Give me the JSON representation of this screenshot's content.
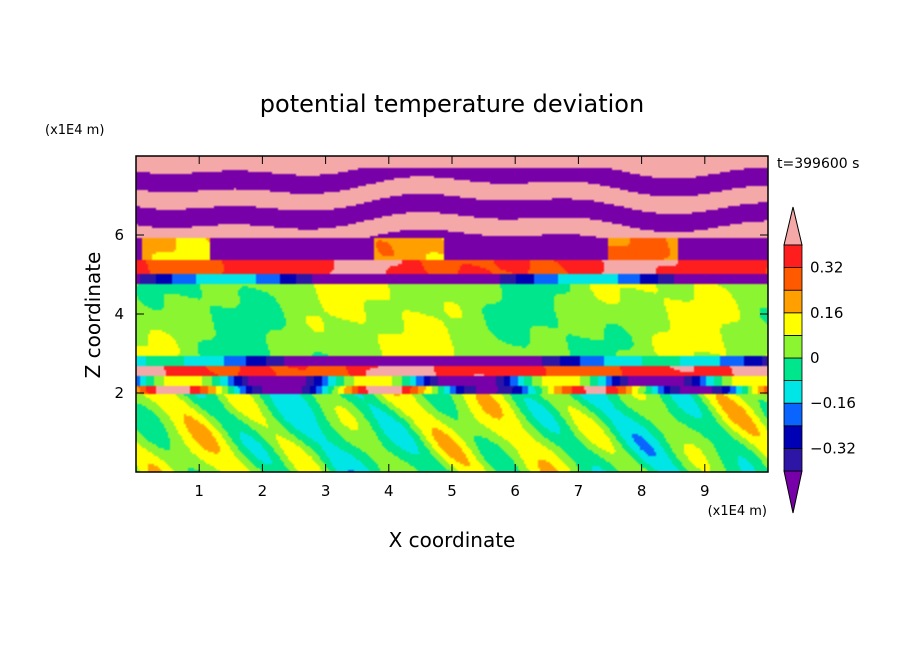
{
  "chart_data": {
    "type": "heatmap",
    "title": "potential temperature deviation",
    "xlabel": "X coordinate",
    "ylabel": "Z coordinate",
    "x_unit": "(x1E4 m)",
    "y_unit": "(x1E4 m)",
    "time_label": "t=399600 s",
    "xlim": [
      0,
      10
    ],
    "ylim": [
      0,
      8
    ],
    "x_ticks": [
      1,
      2,
      3,
      4,
      5,
      6,
      7,
      8,
      9
    ],
    "y_ticks": [
      2,
      4,
      6
    ],
    "grid": false,
    "legend": "right",
    "colorbar": {
      "levels": [
        -0.4,
        -0.32,
        -0.24,
        -0.16,
        -0.08,
        0,
        0.08,
        0.16,
        0.24,
        0.32,
        0.4
      ],
      "tick_values": [
        0.32,
        0.16,
        0,
        -0.16,
        -0.32
      ],
      "tick_labels": [
        "0.32",
        "0.16",
        "0",
        "−0.16",
        "−0.32"
      ],
      "colors": [
        "#7800a8",
        "#2d16a6",
        "#0000b4",
        "#0a64ff",
        "#00e6e6",
        "#00e68c",
        "#8cf532",
        "#ffff00",
        "#ffa000",
        "#ff5a00",
        "#ff1e1e",
        "#f5a8a8"
      ],
      "extend": "both"
    }
  }
}
